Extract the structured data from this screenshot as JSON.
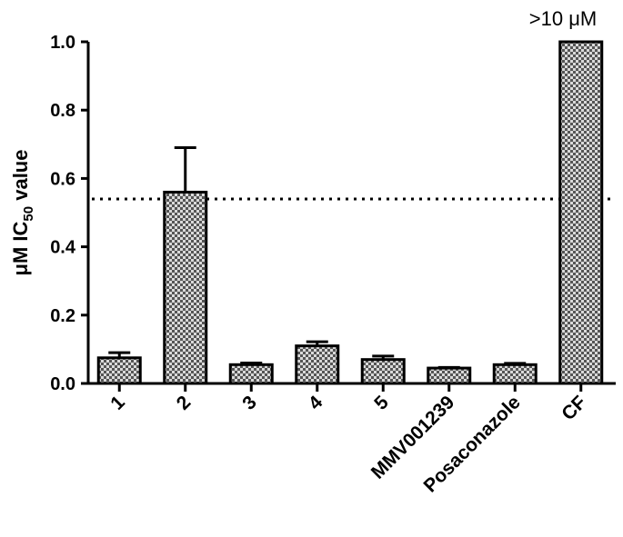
{
  "chart_data": {
    "type": "bar",
    "categories": [
      "1",
      "2",
      "3",
      "4",
      "5",
      "MMV001239",
      "Posaconazole",
      "CF"
    ],
    "values": [
      0.075,
      0.56,
      0.055,
      0.11,
      0.07,
      0.045,
      0.055,
      1.0
    ],
    "error_plus": [
      0.015,
      0.13,
      0.005,
      0.012,
      0.01,
      0.002,
      0.004,
      0
    ],
    "ylabel": {
      "prefix": "μM IC",
      "sub": "50",
      "suffix": " value"
    },
    "ylim": [
      0,
      1.0
    ],
    "yticks": [
      "0.0",
      "0.2",
      "0.4",
      "0.6",
      "0.8",
      "1.0"
    ],
    "reference_line": 0.54,
    "annotation": ">10 μM",
    "grid": false,
    "bar_fill": "checkered gray",
    "colors": {
      "bar_dark": "#555555",
      "bar_light": "#d9d9d9",
      "outline": "#000000"
    }
  }
}
